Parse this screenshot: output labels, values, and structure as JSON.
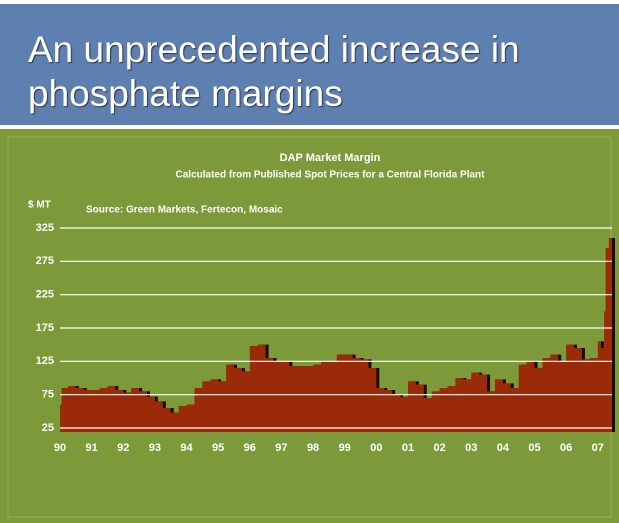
{
  "slide": {
    "title": "An unprecedented increase in phosphate margins"
  },
  "chart_data": {
    "type": "area",
    "title": "DAP Market Margin",
    "subtitle": "Calculated from Published Spot Prices for a Central Florida Plant",
    "y_label": "$ MT",
    "annotation": "Source: Green Markets, Fertecon, Mosaic",
    "x": [
      1990,
      1990.05,
      1990.25,
      1990.5,
      1990.75,
      1991,
      1991.25,
      1991.5,
      1991.75,
      1992,
      1992.25,
      1992.5,
      1992.75,
      1993,
      1993.25,
      1993.5,
      1993.75,
      1994,
      1994.25,
      1994.5,
      1994.75,
      1995,
      1995.25,
      1995.5,
      1995.75,
      1996,
      1996.25,
      1996.5,
      1996.75,
      1997,
      1997.25,
      1997.5,
      1997.75,
      1998,
      1998.25,
      1998.5,
      1998.75,
      1999,
      1999.25,
      1999.5,
      1999.75,
      2000,
      2000.25,
      2000.5,
      2000.75,
      2001,
      2001.25,
      2001.5,
      2001.75,
      2002,
      2002.25,
      2002.5,
      2002.75,
      2003,
      2003.25,
      2003.5,
      2003.75,
      2004,
      2004.25,
      2004.5,
      2004.75,
      2005,
      2005.25,
      2005.5,
      2005.75,
      2006,
      2006.25,
      2006.5,
      2006.75,
      2007,
      2007.1,
      2007.2,
      2007.25,
      2007.35,
      2007.45
    ],
    "series": [
      {
        "name": "DAP margin",
        "color": "#9a2a08",
        "values": [
          60,
          85,
          88,
          85,
          82,
          82,
          85,
          88,
          82,
          78,
          85,
          80,
          72,
          65,
          55,
          48,
          58,
          60,
          85,
          95,
          98,
          95,
          120,
          115,
          110,
          148,
          150,
          130,
          125,
          125,
          118,
          118,
          118,
          120,
          125,
          125,
          135,
          135,
          130,
          128,
          115,
          85,
          82,
          75,
          72,
          95,
          90,
          70,
          80,
          85,
          88,
          100,
          98,
          108,
          105,
          80,
          98,
          92,
          85,
          120,
          125,
          115,
          130,
          135,
          125,
          150,
          145,
          128,
          130,
          155,
          145,
          200,
          295,
          310,
          305
        ]
      }
    ],
    "xlim": [
      1990,
      2007.45
    ],
    "xticks": [
      {
        "value": 1990,
        "label": "90"
      },
      {
        "value": 1991,
        "label": "91"
      },
      {
        "value": 1992,
        "label": "92"
      },
      {
        "value": 1993,
        "label": "93"
      },
      {
        "value": 1994,
        "label": "94"
      },
      {
        "value": 1995,
        "label": "95"
      },
      {
        "value": 1996,
        "label": "96"
      },
      {
        "value": 1997,
        "label": "97"
      },
      {
        "value": 1998,
        "label": "98"
      },
      {
        "value": 1999,
        "label": "99"
      },
      {
        "value": 2000,
        "label": "00"
      },
      {
        "value": 2001,
        "label": "01"
      },
      {
        "value": 2002,
        "label": "02"
      },
      {
        "value": 2003,
        "label": "03"
      },
      {
        "value": 2004,
        "label": "04"
      },
      {
        "value": 2005,
        "label": "05"
      },
      {
        "value": 2006,
        "label": "06"
      },
      {
        "value": 2007,
        "label": "07"
      }
    ],
    "ylim": [
      25,
      325
    ],
    "yticks": [
      25,
      75,
      125,
      175,
      225,
      275,
      325
    ],
    "grid": true
  }
}
